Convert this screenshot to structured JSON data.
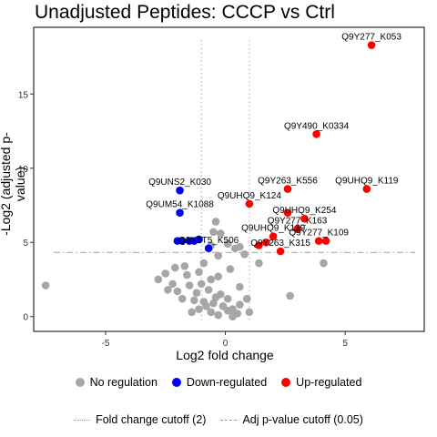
{
  "chart_data": {
    "type": "scatter",
    "title": "Unadjusted Peptides: CCCP vs Ctrl",
    "xlabel": "Log2 fold change",
    "ylabel": "-Log2 (adjusted p-value)",
    "xlim": [
      -8,
      8.3
    ],
    "ylim": [
      -1,
      19.5
    ],
    "xticks": [
      -5,
      0,
      5
    ],
    "yticks": [
      0,
      5,
      10,
      15
    ],
    "grid": false,
    "fc_cutoffs": [
      -1,
      1
    ],
    "p_cutoff_y": 4.32,
    "colors": {
      "none": "#a6a6a6",
      "down": "#0000ff",
      "up": "#ff0000",
      "cutoff": "#aaaaaa"
    },
    "legend": {
      "groups": [
        {
          "key": "none",
          "label": "No regulation"
        },
        {
          "key": "down",
          "label": "Down-regulated"
        },
        {
          "key": "up",
          "label": "Up-regulated"
        }
      ],
      "lines": [
        {
          "style": "dotted",
          "label": "Fold change cutoff (2)"
        },
        {
          "style": "dashdot",
          "label": "Adj p-value cutoff (0.05)"
        }
      ]
    },
    "series": [
      {
        "name": "Up-regulated",
        "key": "up",
        "points": [
          {
            "x": 6.1,
            "y": 18.3,
            "label": "Q9Y277_K053"
          },
          {
            "x": 3.8,
            "y": 12.3,
            "label": "Q9Y490_K0334"
          },
          {
            "x": 2.6,
            "y": 8.6,
            "label": "Q9Y263_K556"
          },
          {
            "x": 5.9,
            "y": 8.6,
            "label": "Q9UHQ9_K119"
          },
          {
            "x": 1.0,
            "y": 7.6,
            "label": "Q9UHQ9_K124"
          },
          {
            "x": 2.6,
            "y": 7.0
          },
          {
            "x": 3.3,
            "y": 6.6,
            "label": "Q9UHQ9_K254"
          },
          {
            "x": 2.0,
            "y": 5.4,
            "label": "Q9UHQ9_K139"
          },
          {
            "x": 3.0,
            "y": 5.9,
            "label": "Q9Y277_K163"
          },
          {
            "x": 3.9,
            "y": 5.1,
            "label": "Q9Y277_K109"
          },
          {
            "x": 4.2,
            "y": 5.1
          },
          {
            "x": 1.7,
            "y": 5.0
          },
          {
            "x": 2.3,
            "y": 4.4,
            "label": "Q9Y263_K315"
          },
          {
            "x": 1.4,
            "y": 4.8
          }
        ]
      },
      {
        "name": "Down-regulated",
        "key": "down",
        "points": [
          {
            "x": -1.9,
            "y": 8.5,
            "label": "Q9UNS2_K030"
          },
          {
            "x": -1.9,
            "y": 7.0,
            "label": "Q9UM54_K1088"
          },
          {
            "x": -2.0,
            "y": 5.1
          },
          {
            "x": -1.8,
            "y": 5.1
          },
          {
            "x": -1.5,
            "y": 5.1
          },
          {
            "x": -1.3,
            "y": 5.1
          },
          {
            "x": -1.1,
            "y": 5.2
          },
          {
            "x": -0.7,
            "y": 4.6,
            "label": "Q9Y5T5_K506"
          }
        ]
      },
      {
        "name": "No regulation",
        "key": "none",
        "points": [
          {
            "x": -7.5,
            "y": 2.1
          },
          {
            "x": -0.4,
            "y": 6.4
          },
          {
            "x": -0.5,
            "y": 5.7
          },
          {
            "x": -0.2,
            "y": 5.6
          },
          {
            "x": -0.6,
            "y": 4.8
          },
          {
            "x": 0.1,
            "y": 4.9
          },
          {
            "x": 0.6,
            "y": 4.7
          },
          {
            "x": 0.4,
            "y": 4.6
          },
          {
            "x": 0.8,
            "y": 4.2
          },
          {
            "x": -0.3,
            "y": 4.1
          },
          {
            "x": 4.1,
            "y": 3.6
          },
          {
            "x": 1.4,
            "y": 3.6
          },
          {
            "x": -1.7,
            "y": 3.4
          },
          {
            "x": -2.1,
            "y": 3.3
          },
          {
            "x": -0.9,
            "y": 3.6
          },
          {
            "x": -1.1,
            "y": 3.0
          },
          {
            "x": 0.2,
            "y": 3.2
          },
          {
            "x": -2.5,
            "y": 2.9
          },
          {
            "x": -0.3,
            "y": 2.7
          },
          {
            "x": -1.6,
            "y": 2.8
          },
          {
            "x": -2.8,
            "y": 2.5
          },
          {
            "x": -2.2,
            "y": 2.2
          },
          {
            "x": -1.5,
            "y": 2.1
          },
          {
            "x": -0.6,
            "y": 2.5
          },
          {
            "x": -1.0,
            "y": 2.2
          },
          {
            "x": 0.6,
            "y": 2.0
          },
          {
            "x": -2.0,
            "y": 1.7
          },
          {
            "x": -1.2,
            "y": 1.6
          },
          {
            "x": -0.7,
            "y": 1.8
          },
          {
            "x": -0.2,
            "y": 1.5
          },
          {
            "x": 0.1,
            "y": 1.2
          },
          {
            "x": -1.3,
            "y": 1.1
          },
          {
            "x": -0.9,
            "y": 1.0
          },
          {
            "x": -0.5,
            "y": 0.9
          },
          {
            "x": -0.1,
            "y": 0.7
          },
          {
            "x": 0.3,
            "y": 0.5
          },
          {
            "x": -1.1,
            "y": 0.5
          },
          {
            "x": -0.6,
            "y": 0.3
          },
          {
            "x": 0.6,
            "y": 0.8
          },
          {
            "x": 0.9,
            "y": 1.2
          },
          {
            "x": -0.3,
            "y": 0.1
          },
          {
            "x": 0.5,
            "y": 0.2
          },
          {
            "x": 0.3,
            "y": 0.0
          },
          {
            "x": -2.4,
            "y": 1.8
          },
          {
            "x": -1.8,
            "y": 1.2
          },
          {
            "x": -0.8,
            "y": 0.7
          },
          {
            "x": 2.7,
            "y": 1.4
          },
          {
            "x": 1.0,
            "y": 0.3
          },
          {
            "x": -1.4,
            "y": 0.3
          },
          {
            "x": 0.1,
            "y": 0.4
          },
          {
            "x": -0.4,
            "y": 1.3
          }
        ]
      }
    ]
  }
}
